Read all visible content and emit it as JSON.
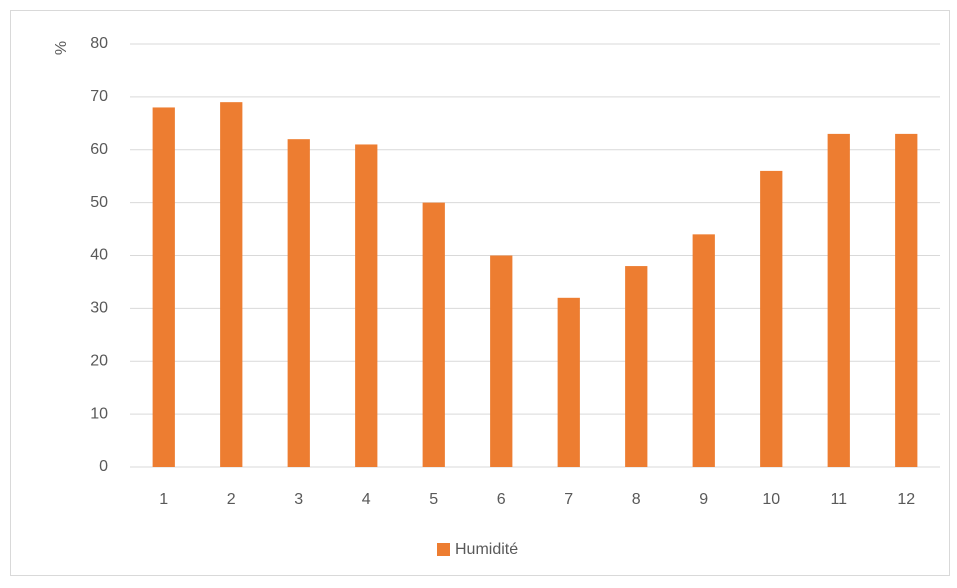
{
  "chart_data": {
    "type": "bar",
    "y_label": "%",
    "categories": [
      "1",
      "2",
      "3",
      "4",
      "5",
      "6",
      "7",
      "8",
      "9",
      "10",
      "11",
      "12"
    ],
    "series": [
      {
        "name": "Humidité",
        "color": "#ed7d31",
        "values": [
          68,
          69,
          62,
          61,
          50,
          40,
          32,
          38,
          44,
          56,
          63,
          63
        ]
      }
    ],
    "ylim": [
      0,
      80
    ],
    "yticks": [
      0,
      10,
      20,
      30,
      40,
      50,
      60,
      70,
      80
    ],
    "grid": true,
    "legend": "bottom"
  }
}
